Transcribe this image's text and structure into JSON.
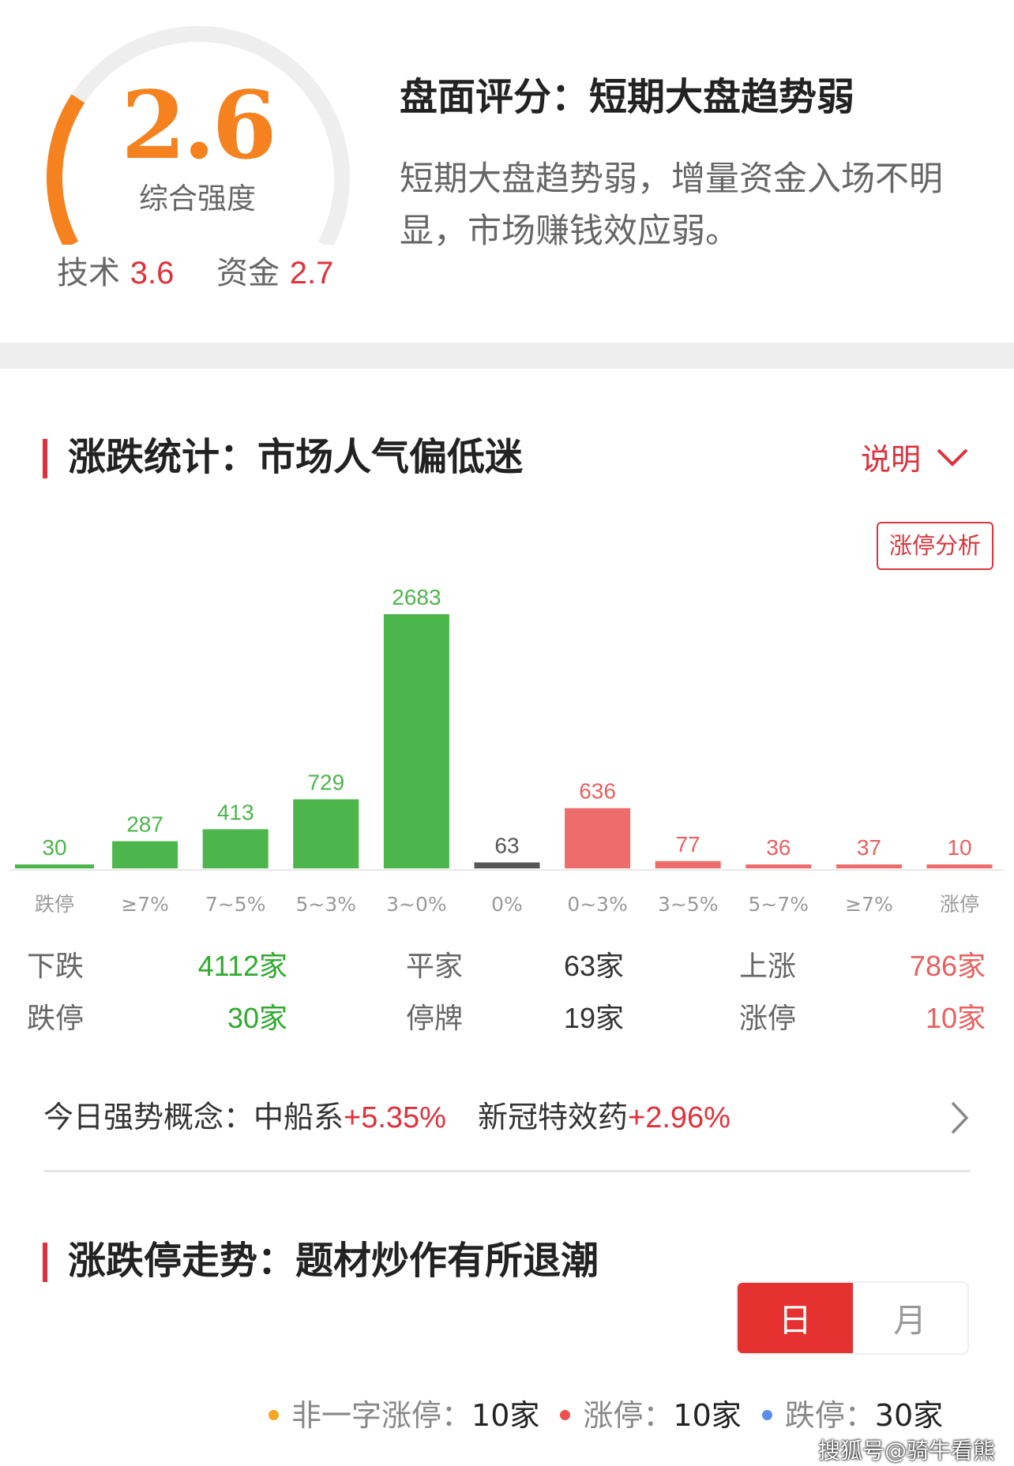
{
  "score": {
    "value": "2.6",
    "label": "综合强度",
    "tech_label": "技术",
    "tech_value": "3.6",
    "fund_label": "资金",
    "fund_value": "2.7",
    "level": 0.26,
    "colors": {
      "fill": "#f5821f",
      "track": "#eeeeee"
    }
  },
  "summary": {
    "title": "盘面评分：短期大盘趋势弱",
    "desc": "短期大盘趋势弱，增量资金入场不明显，市场赚钱效应弱。"
  },
  "stats_section": {
    "title": "涨跌统计：市场人气偏低迷",
    "explain": "说明",
    "analysis_button": "涨停分析"
  },
  "chart_data": {
    "type": "bar",
    "categories": [
      "跌停",
      "≥7%",
      "7~5%",
      "5~3%",
      "3~0%",
      "0%",
      "0~3%",
      "3~5%",
      "5~7%",
      "≥7%",
      "涨停"
    ],
    "values": [
      30,
      287,
      413,
      729,
      2683,
      63,
      636,
      77,
      36,
      37,
      10
    ],
    "colors": [
      "#4cb54b",
      "#4cb54b",
      "#4cb54b",
      "#4cb54b",
      "#4cb54b",
      "#555555",
      "#ed6d6d",
      "#ed6d6d",
      "#ed6d6d",
      "#ed6d6d",
      "#ed6d6d"
    ],
    "label_colors": [
      "#4cb54b",
      "#4cb54b",
      "#4cb54b",
      "#4cb54b",
      "#4cb54b",
      "#555555",
      "#e8605f",
      "#e8605f",
      "#e8605f",
      "#e8605f",
      "#e8605f"
    ]
  },
  "totals": {
    "down_label": "下跌",
    "down": "4112家",
    "flat_label": "平家",
    "flat": "63家",
    "up_label": "上涨",
    "up": "786家",
    "limit_down_label": "跌停",
    "limit_down": "30家",
    "suspended_label": "停牌",
    "suspended": "19家",
    "limit_up_label": "涨停",
    "limit_up": "10家"
  },
  "concepts": {
    "label": "今日强势概念：",
    "items": [
      {
        "name": "中船系",
        "change": "+5.35%"
      },
      {
        "name": "新冠特效药",
        "change": "+2.96%"
      }
    ]
  },
  "trend_section": {
    "title": "涨跌停走势：题材炒作有所退潮",
    "tabs": [
      {
        "label": "日",
        "active": true
      },
      {
        "label": "月",
        "active": false
      }
    ],
    "legend": [
      {
        "label": "非一字涨停：",
        "value": "10家",
        "color": "#f5a623"
      },
      {
        "label": "涨停：",
        "value": "10家",
        "color": "#f05050"
      },
      {
        "label": "跌停：",
        "value": "30家",
        "color": "#5b8def"
      }
    ]
  },
  "watermark": "搜狐号@骑牛看熊"
}
